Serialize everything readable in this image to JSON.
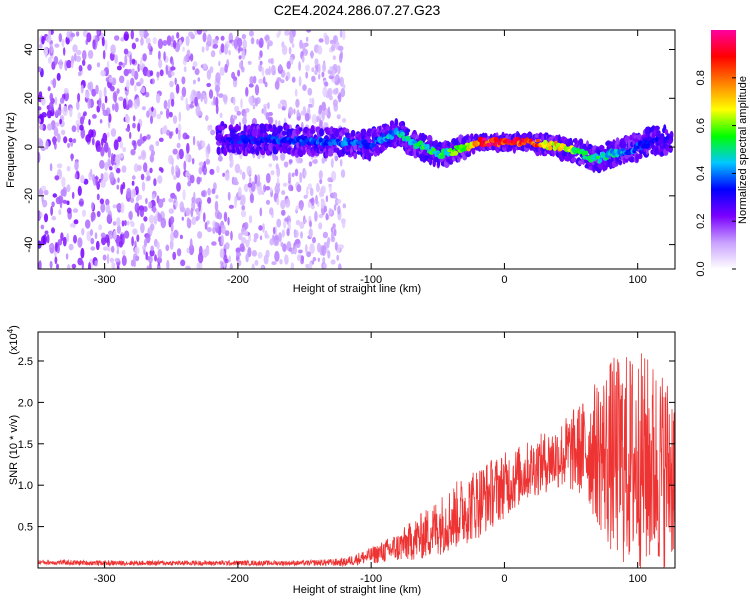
{
  "title": "C2E4.2024.286.07.27.G23",
  "chart_data": [
    {
      "type": "heatmap",
      "title": "C2E4.2024.286.07.27.G23",
      "xlabel": "Height of straight line (km)",
      "ylabel": "Frequency (Hz)",
      "xlim": [
        -350,
        128
      ],
      "ylim": [
        -50,
        48
      ],
      "x_ticks": [
        -300,
        -200,
        -100,
        0,
        100
      ],
      "y_ticks": [
        -40,
        -20,
        0,
        20,
        40
      ],
      "colorbar": {
        "label": "Normalized spectral amplitude",
        "range": [
          0,
          1
        ],
        "ticks": [
          0.0,
          0.2,
          0.4,
          0.6,
          0.8
        ],
        "tick_labels": [
          "0.0",
          "0.2",
          "0.4",
          "0.6",
          "0.8"
        ],
        "colormap": [
          "#ffffff",
          "#c8a0ff",
          "#7a00ff",
          "#0000ff",
          "#00c8ff",
          "#00ff00",
          "#ffff00",
          "#ff8000",
          "#ff0000",
          "#ff00a0"
        ]
      },
      "ridge": {
        "x": [
          -215,
          -200,
          -180,
          -160,
          -140,
          -120,
          -100,
          -90,
          -80,
          -70,
          -60,
          -50,
          -40,
          -30,
          -20,
          -10,
          0,
          10,
          20,
          30,
          40,
          50,
          60,
          70,
          80,
          90,
          100,
          110,
          125
        ],
        "frequency": [
          4,
          3,
          3,
          3,
          2,
          2,
          1,
          4,
          6,
          2,
          0,
          -3,
          -2,
          0,
          2,
          2,
          2,
          2,
          2,
          1,
          0,
          -1,
          -3,
          -5,
          -3,
          -2,
          0,
          2,
          3
        ],
        "peak_amplitude": [
          0.3,
          0.35,
          0.35,
          0.4,
          0.4,
          0.45,
          0.35,
          0.45,
          0.5,
          0.5,
          0.55,
          0.55,
          0.6,
          0.7,
          0.95,
          0.95,
          0.95,
          0.95,
          0.9,
          0.8,
          0.75,
          0.65,
          0.55,
          0.55,
          0.5,
          0.45,
          0.4,
          0.35,
          0.3
        ]
      },
      "scatter_region": {
        "x_range": [
          -350,
          -120
        ],
        "frequency_range": [
          -50,
          48
        ],
        "amplitude_range": [
          0.05,
          0.25
        ]
      }
    },
    {
      "type": "line",
      "xlabel": "Height of straight line (km)",
      "ylabel": "SNR (10 * v/v)",
      "y_multiplier": "(x10",
      "y_multiplier_exp": "4",
      "y_multiplier_close": ")",
      "xlim": [
        -350,
        128
      ],
      "ylim": [
        0,
        2.85
      ],
      "x_ticks": [
        -300,
        -200,
        -100,
        0,
        100
      ],
      "y_ticks": [
        0.5,
        1.0,
        1.5,
        2.0,
        2.5
      ],
      "y_tick_labels": [
        "0.5",
        "1.0",
        "1.5",
        "2.0",
        "2.5"
      ],
      "color": "#ee3333",
      "series": [
        {
          "x": [
            -350,
            -300,
            -250,
            -200,
            -150,
            -120,
            -100,
            -80,
            -60,
            -40,
            -20,
            0,
            20,
            40,
            60,
            70,
            80,
            90,
            100,
            110,
            120,
            128
          ],
          "mean": [
            0.07,
            0.06,
            0.06,
            0.06,
            0.06,
            0.07,
            0.15,
            0.25,
            0.4,
            0.6,
            0.8,
            1.0,
            1.2,
            1.35,
            1.45,
            1.4,
            1.35,
            1.3,
            1.3,
            1.25,
            1.2,
            1.2
          ],
          "spread": [
            0.03,
            0.03,
            0.03,
            0.03,
            0.03,
            0.05,
            0.1,
            0.18,
            0.3,
            0.4,
            0.45,
            0.4,
            0.35,
            0.4,
            0.6,
            0.9,
            1.2,
            1.3,
            1.35,
            1.3,
            1.2,
            1.1
          ]
        }
      ]
    }
  ]
}
